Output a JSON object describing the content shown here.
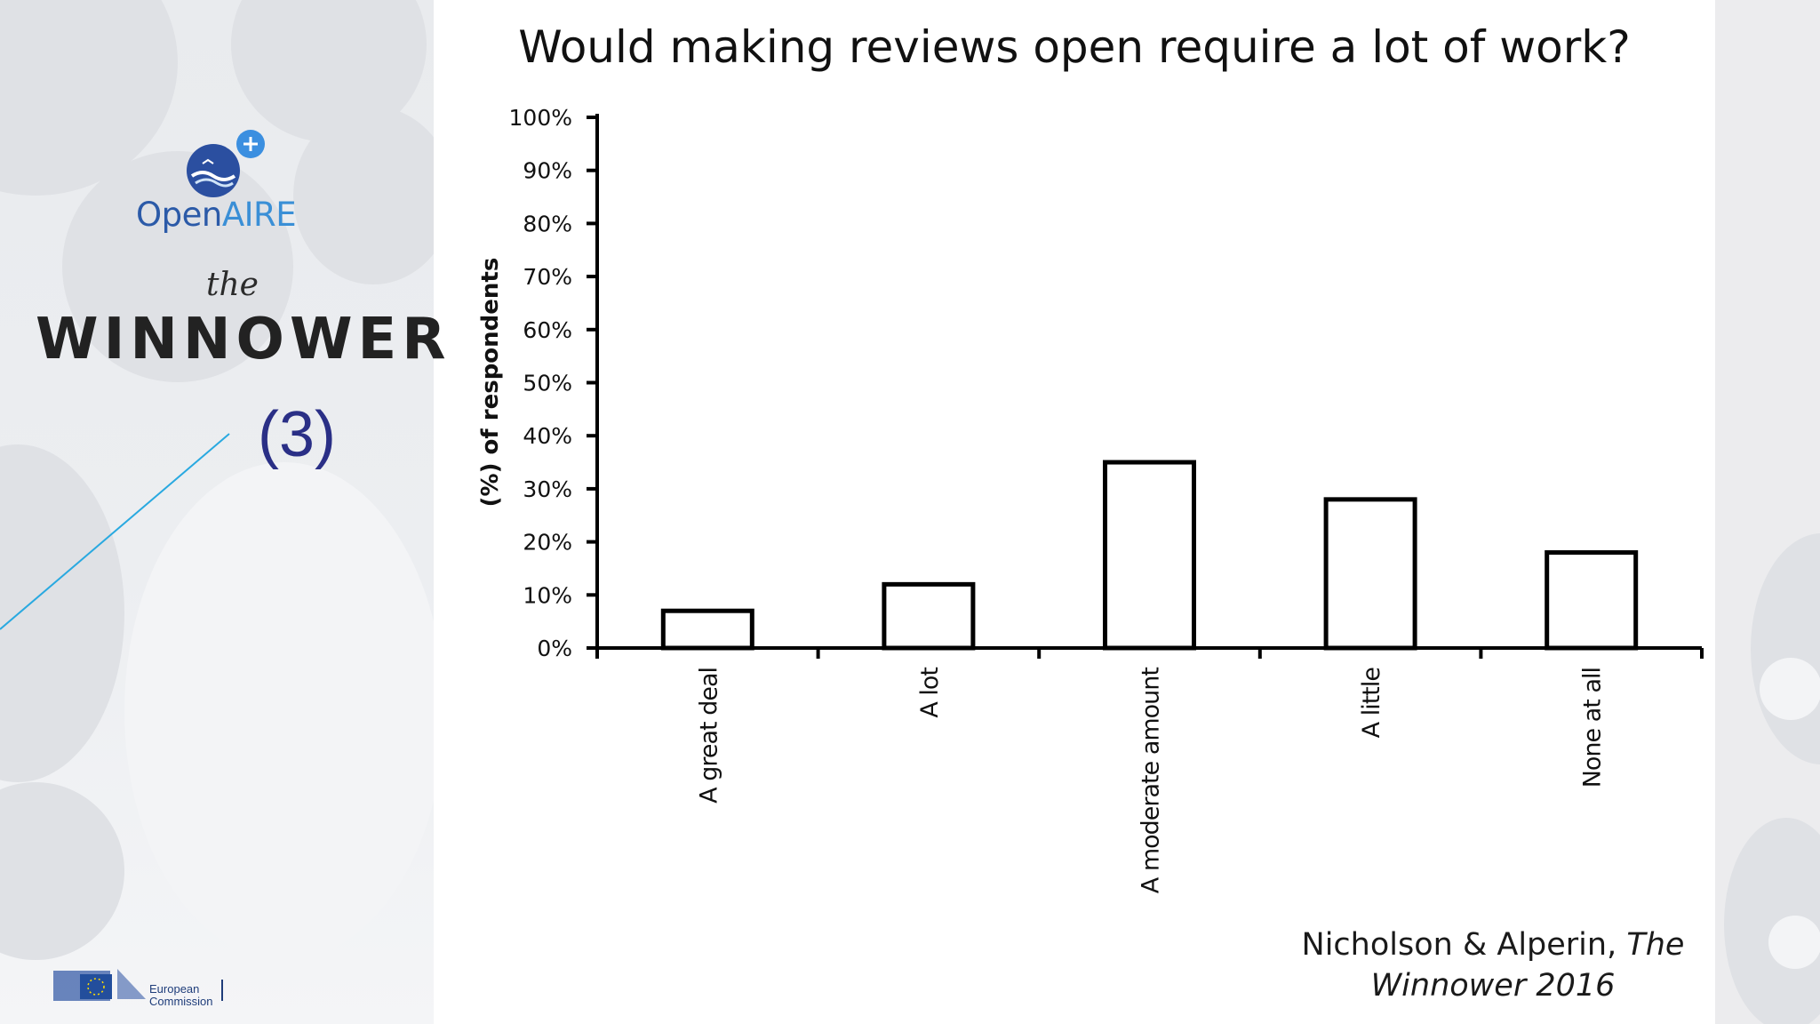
{
  "branding": {
    "openaire_prefix": "Open",
    "openaire_suffix": "AIRE",
    "winnower_the": "the",
    "winnower_name": "WINNOWER",
    "slide_number": "(3)",
    "eu_line1": "European",
    "eu_line2": "Commission"
  },
  "citation": {
    "authors": "Nicholson & Alperin,",
    "journal_part1": "The",
    "journal_part2": "Winnower 2016"
  },
  "colors": {
    "bar_fill": "#ffffff",
    "bar_stroke": "#000000",
    "accent_line": "#29a9e0",
    "openaire_blue": "#2b5aa8",
    "slide_number": "#2a2f86"
  },
  "chart_data": {
    "type": "bar",
    "title": "Would making reviews open require a lot of work?",
    "xlabel": "",
    "ylabel": "(%) of respondents",
    "categories": [
      "A great deal",
      "A lot",
      "A moderate amount",
      "A little",
      "None at all"
    ],
    "values": [
      7,
      12,
      35,
      28,
      18
    ],
    "ylim": [
      0,
      100
    ],
    "yticks": [
      0,
      10,
      20,
      30,
      40,
      50,
      60,
      70,
      80,
      90,
      100
    ],
    "ytick_labels": [
      "0%",
      "10%",
      "20%",
      "30%",
      "40%",
      "50%",
      "60%",
      "70%",
      "80%",
      "90%",
      "100%"
    ],
    "grid": false,
    "legend": "none"
  }
}
